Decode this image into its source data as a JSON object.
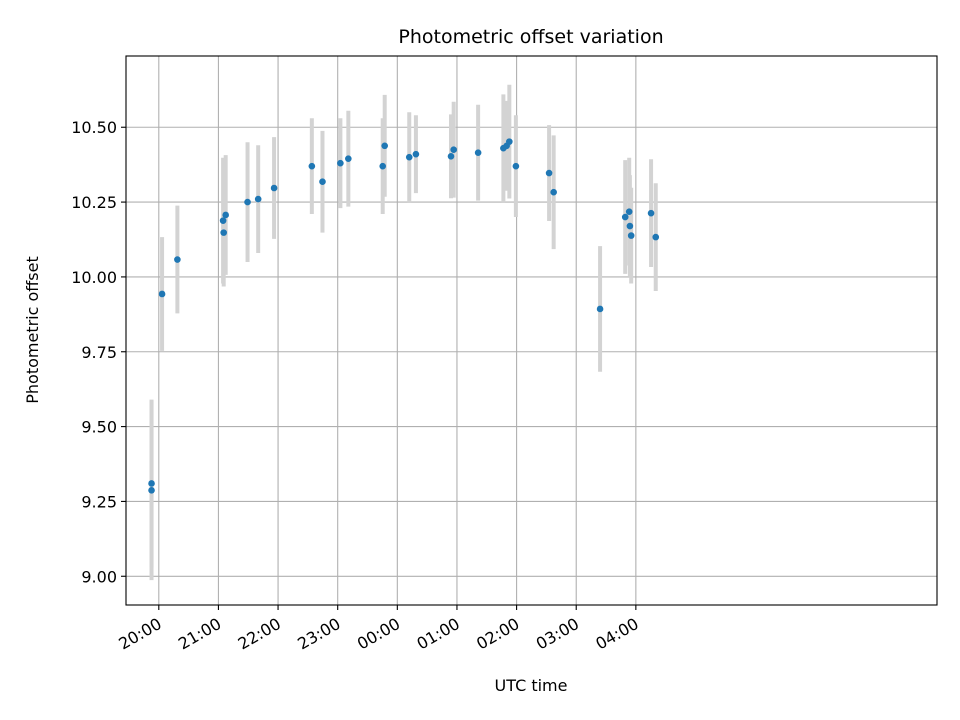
{
  "chart_data": {
    "type": "scatter",
    "title": "Photometric offset variation",
    "xlabel": "UTC time",
    "ylabel": "Photometric offset",
    "grid": true,
    "colors": {
      "marker": "#1f77b4",
      "errorbar": "#d3d3d3",
      "grid": "#b0b0b0"
    },
    "x_domain_minutes": [
      1167,
      1983
    ],
    "ylim": [
      8.904,
      10.738
    ],
    "x_ticks": [
      {
        "label": "20:00",
        "minutes": 1200
      },
      {
        "label": "21:00",
        "minutes": 1260
      },
      {
        "label": "22:00",
        "minutes": 1320
      },
      {
        "label": "23:00",
        "minutes": 1380
      },
      {
        "label": "00:00",
        "minutes": 1440
      },
      {
        "label": "01:00",
        "minutes": 1500
      },
      {
        "label": "02:00",
        "minutes": 1560
      },
      {
        "label": "03:00",
        "minutes": 1620
      },
      {
        "label": "04:00",
        "minutes": 1680
      }
    ],
    "y_ticks": [
      {
        "label": "9.00",
        "value": 9.0
      },
      {
        "label": "9.25",
        "value": 9.25
      },
      {
        "label": "9.50",
        "value": 9.5
      },
      {
        "label": "9.75",
        "value": 9.75
      },
      {
        "label": "10.00",
        "value": 10.0
      },
      {
        "label": "10.25",
        "value": 10.25
      },
      {
        "label": "10.50",
        "value": 10.5
      }
    ],
    "points": [
      {
        "t": 1192.7,
        "y": 9.31,
        "err": 0.28
      },
      {
        "t": 1192.7,
        "y": 9.287,
        "err": 0.3
      },
      {
        "t": 1203.3,
        "y": 9.943,
        "err": 0.19
      },
      {
        "t": 1218.7,
        "y": 10.058,
        "err": 0.18
      },
      {
        "t": 1264.7,
        "y": 10.188,
        "err": 0.21
      },
      {
        "t": 1265.3,
        "y": 10.148,
        "err": 0.18
      },
      {
        "t": 1267.3,
        "y": 10.207,
        "err": 0.2
      },
      {
        "t": 1289.3,
        "y": 10.25,
        "err": 0.2
      },
      {
        "t": 1300.0,
        "y": 10.26,
        "err": 0.18
      },
      {
        "t": 1316.0,
        "y": 10.297,
        "err": 0.17
      },
      {
        "t": 1354.0,
        "y": 10.37,
        "err": 0.16
      },
      {
        "t": 1364.7,
        "y": 10.318,
        "err": 0.17
      },
      {
        "t": 1382.7,
        "y": 10.38,
        "err": 0.15
      },
      {
        "t": 1390.7,
        "y": 10.395,
        "err": 0.16
      },
      {
        "t": 1425.3,
        "y": 10.37,
        "err": 0.16
      },
      {
        "t": 1427.3,
        "y": 10.438,
        "err": 0.17
      },
      {
        "t": 1452.0,
        "y": 10.4,
        "err": 0.15
      },
      {
        "t": 1458.7,
        "y": 10.41,
        "err": 0.13
      },
      {
        "t": 1494.0,
        "y": 10.403,
        "err": 0.14
      },
      {
        "t": 1496.7,
        "y": 10.425,
        "err": 0.16
      },
      {
        "t": 1521.3,
        "y": 10.415,
        "err": 0.16
      },
      {
        "t": 1546.7,
        "y": 10.43,
        "err": 0.18
      },
      {
        "t": 1550.0,
        "y": 10.438,
        "err": 0.15
      },
      {
        "t": 1552.7,
        "y": 10.452,
        "err": 0.19
      },
      {
        "t": 1559.3,
        "y": 10.37,
        "err": 0.17
      },
      {
        "t": 1592.7,
        "y": 10.347,
        "err": 0.16
      },
      {
        "t": 1597.3,
        "y": 10.283,
        "err": 0.19
      },
      {
        "t": 1644.0,
        "y": 9.893,
        "err": 0.21
      },
      {
        "t": 1669.3,
        "y": 10.2,
        "err": 0.19
      },
      {
        "t": 1673.3,
        "y": 10.218,
        "err": 0.18
      },
      {
        "t": 1674.0,
        "y": 10.17,
        "err": 0.17
      },
      {
        "t": 1675.3,
        "y": 10.138,
        "err": 0.16
      },
      {
        "t": 1695.3,
        "y": 10.213,
        "err": 0.18
      },
      {
        "t": 1700.0,
        "y": 10.133,
        "err": 0.18
      }
    ]
  }
}
